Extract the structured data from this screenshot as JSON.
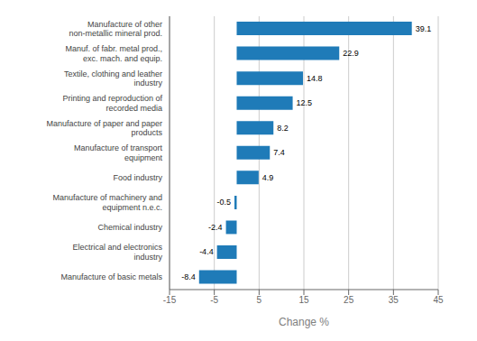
{
  "chart_data": {
    "type": "bar",
    "orientation": "horizontal",
    "categories": [
      "Manufacture of basic metals",
      "Electrical and electronics industry",
      "Chemical industry",
      "Manufacture of machinery and equipment n.e.c.",
      "Food industry",
      "Manufacture of transport equipment",
      "Manufacture of paper and paper products",
      "Printing and reproduction of recorded media",
      "Textile, clothing and leather industry",
      "Manuf. of fabr. metal prod., exc. mach. and equip.",
      "Manufacture of other non-metallic mineral prod."
    ],
    "values": [
      -8.4,
      -4.4,
      -2.4,
      -0.5,
      4.9,
      7.4,
      8.2,
      12.5,
      14.8,
      22.9,
      39.1
    ],
    "color": "#1f7bb8",
    "xlabel": "Change %",
    "xlim": [
      -15,
      45
    ],
    "xticks": [
      -15,
      -5,
      5,
      15,
      25,
      35,
      45
    ],
    "grid": true,
    "data_labels": true
  }
}
